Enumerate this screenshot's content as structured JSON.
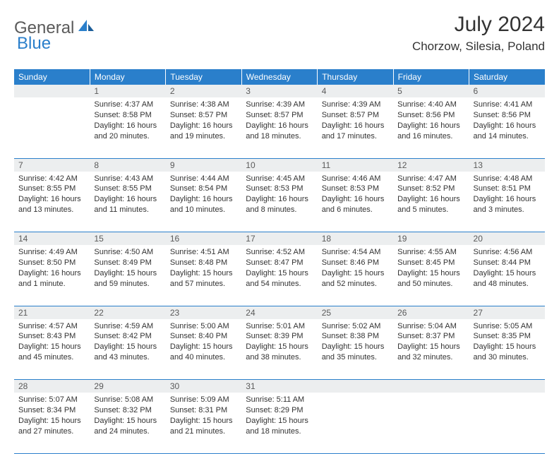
{
  "brand": {
    "general": "General",
    "blue": "Blue"
  },
  "title": "July 2024",
  "location": "Chorzow, Silesia, Poland",
  "colors": {
    "header_bg": "#2a7fcb",
    "header_text": "#ffffff",
    "daynum_bg": "#eceeef",
    "border": "#2a7fcb",
    "text": "#333333",
    "logo_gray": "#5a5a5a",
    "logo_blue": "#2a7fcb"
  },
  "weekdays": [
    "Sunday",
    "Monday",
    "Tuesday",
    "Wednesday",
    "Thursday",
    "Friday",
    "Saturday"
  ],
  "weeks": [
    [
      {
        "num": "",
        "lines": []
      },
      {
        "num": "1",
        "lines": [
          "Sunrise: 4:37 AM",
          "Sunset: 8:58 PM",
          "Daylight: 16 hours and 20 minutes."
        ]
      },
      {
        "num": "2",
        "lines": [
          "Sunrise: 4:38 AM",
          "Sunset: 8:57 PM",
          "Daylight: 16 hours and 19 minutes."
        ]
      },
      {
        "num": "3",
        "lines": [
          "Sunrise: 4:39 AM",
          "Sunset: 8:57 PM",
          "Daylight: 16 hours and 18 minutes."
        ]
      },
      {
        "num": "4",
        "lines": [
          "Sunrise: 4:39 AM",
          "Sunset: 8:57 PM",
          "Daylight: 16 hours and 17 minutes."
        ]
      },
      {
        "num": "5",
        "lines": [
          "Sunrise: 4:40 AM",
          "Sunset: 8:56 PM",
          "Daylight: 16 hours and 16 minutes."
        ]
      },
      {
        "num": "6",
        "lines": [
          "Sunrise: 4:41 AM",
          "Sunset: 8:56 PM",
          "Daylight: 16 hours and 14 minutes."
        ]
      }
    ],
    [
      {
        "num": "7",
        "lines": [
          "Sunrise: 4:42 AM",
          "Sunset: 8:55 PM",
          "Daylight: 16 hours and 13 minutes."
        ]
      },
      {
        "num": "8",
        "lines": [
          "Sunrise: 4:43 AM",
          "Sunset: 8:55 PM",
          "Daylight: 16 hours and 11 minutes."
        ]
      },
      {
        "num": "9",
        "lines": [
          "Sunrise: 4:44 AM",
          "Sunset: 8:54 PM",
          "Daylight: 16 hours and 10 minutes."
        ]
      },
      {
        "num": "10",
        "lines": [
          "Sunrise: 4:45 AM",
          "Sunset: 8:53 PM",
          "Daylight: 16 hours and 8 minutes."
        ]
      },
      {
        "num": "11",
        "lines": [
          "Sunrise: 4:46 AM",
          "Sunset: 8:53 PM",
          "Daylight: 16 hours and 6 minutes."
        ]
      },
      {
        "num": "12",
        "lines": [
          "Sunrise: 4:47 AM",
          "Sunset: 8:52 PM",
          "Daylight: 16 hours and 5 minutes."
        ]
      },
      {
        "num": "13",
        "lines": [
          "Sunrise: 4:48 AM",
          "Sunset: 8:51 PM",
          "Daylight: 16 hours and 3 minutes."
        ]
      }
    ],
    [
      {
        "num": "14",
        "lines": [
          "Sunrise: 4:49 AM",
          "Sunset: 8:50 PM",
          "Daylight: 16 hours and 1 minute."
        ]
      },
      {
        "num": "15",
        "lines": [
          "Sunrise: 4:50 AM",
          "Sunset: 8:49 PM",
          "Daylight: 15 hours and 59 minutes."
        ]
      },
      {
        "num": "16",
        "lines": [
          "Sunrise: 4:51 AM",
          "Sunset: 8:48 PM",
          "Daylight: 15 hours and 57 minutes."
        ]
      },
      {
        "num": "17",
        "lines": [
          "Sunrise: 4:52 AM",
          "Sunset: 8:47 PM",
          "Daylight: 15 hours and 54 minutes."
        ]
      },
      {
        "num": "18",
        "lines": [
          "Sunrise: 4:54 AM",
          "Sunset: 8:46 PM",
          "Daylight: 15 hours and 52 minutes."
        ]
      },
      {
        "num": "19",
        "lines": [
          "Sunrise: 4:55 AM",
          "Sunset: 8:45 PM",
          "Daylight: 15 hours and 50 minutes."
        ]
      },
      {
        "num": "20",
        "lines": [
          "Sunrise: 4:56 AM",
          "Sunset: 8:44 PM",
          "Daylight: 15 hours and 48 minutes."
        ]
      }
    ],
    [
      {
        "num": "21",
        "lines": [
          "Sunrise: 4:57 AM",
          "Sunset: 8:43 PM",
          "Daylight: 15 hours and 45 minutes."
        ]
      },
      {
        "num": "22",
        "lines": [
          "Sunrise: 4:59 AM",
          "Sunset: 8:42 PM",
          "Daylight: 15 hours and 43 minutes."
        ]
      },
      {
        "num": "23",
        "lines": [
          "Sunrise: 5:00 AM",
          "Sunset: 8:40 PM",
          "Daylight: 15 hours and 40 minutes."
        ]
      },
      {
        "num": "24",
        "lines": [
          "Sunrise: 5:01 AM",
          "Sunset: 8:39 PM",
          "Daylight: 15 hours and 38 minutes."
        ]
      },
      {
        "num": "25",
        "lines": [
          "Sunrise: 5:02 AM",
          "Sunset: 8:38 PM",
          "Daylight: 15 hours and 35 minutes."
        ]
      },
      {
        "num": "26",
        "lines": [
          "Sunrise: 5:04 AM",
          "Sunset: 8:37 PM",
          "Daylight: 15 hours and 32 minutes."
        ]
      },
      {
        "num": "27",
        "lines": [
          "Sunrise: 5:05 AM",
          "Sunset: 8:35 PM",
          "Daylight: 15 hours and 30 minutes."
        ]
      }
    ],
    [
      {
        "num": "28",
        "lines": [
          "Sunrise: 5:07 AM",
          "Sunset: 8:34 PM",
          "Daylight: 15 hours and 27 minutes."
        ]
      },
      {
        "num": "29",
        "lines": [
          "Sunrise: 5:08 AM",
          "Sunset: 8:32 PM",
          "Daylight: 15 hours and 24 minutes."
        ]
      },
      {
        "num": "30",
        "lines": [
          "Sunrise: 5:09 AM",
          "Sunset: 8:31 PM",
          "Daylight: 15 hours and 21 minutes."
        ]
      },
      {
        "num": "31",
        "lines": [
          "Sunrise: 5:11 AM",
          "Sunset: 8:29 PM",
          "Daylight: 15 hours and 18 minutes."
        ]
      },
      {
        "num": "",
        "lines": []
      },
      {
        "num": "",
        "lines": []
      },
      {
        "num": "",
        "lines": []
      }
    ]
  ]
}
